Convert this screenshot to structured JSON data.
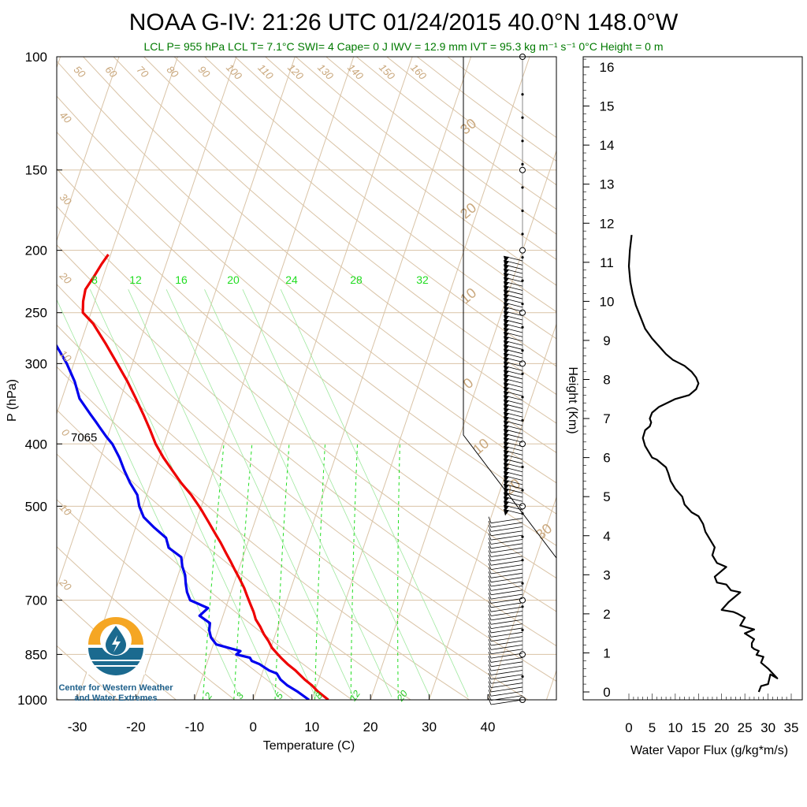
{
  "title": "NOAA G-IV: 21:26 UTC 01/24/2015  40.0°N 148.0°W",
  "subtitle": "LCL P= 955 hPa  LCL T= 7.1°C  SWI= 4  Cape= 0 J  IWV = 12.9 mm  IVT = 95.3 kg m⁻¹ s⁻¹  0°C Height = 0 m",
  "logo": {
    "line1": "Center for Western Weather",
    "line2": "and Water Extremes"
  },
  "annotation_7065": "7065",
  "colors": {
    "temperature": "#ee0000",
    "dewpoint": "#0000ee",
    "grid": "#d9c3a6",
    "mixing": "#22dd22",
    "profile": "#000000"
  },
  "chart_data": [
    {
      "type": "line",
      "chart_kind": "skew-t log-p",
      "xlabel": "Temperature (C)",
      "ylabel": "P (hPa)",
      "xlim": [
        -34,
        52
      ],
      "ylim": [
        1000,
        100
      ],
      "y_scale": "log",
      "x_ticks": [
        "-30",
        "-20",
        "-10",
        "0",
        "10",
        "20",
        "30",
        "40"
      ],
      "x_tick_values": [
        -30,
        -20,
        -10,
        0,
        10,
        20,
        30,
        40
      ],
      "y_ticks": [
        "100",
        "150",
        "200",
        "250",
        "300",
        "400",
        "500",
        "700",
        "850",
        "1000"
      ],
      "y_tick_values": [
        100,
        150,
        200,
        250,
        300,
        400,
        500,
        700,
        850,
        1000
      ],
      "mixing_ratio_labels": [
        "8",
        "12",
        "16",
        "20",
        "24",
        "28",
        "32"
      ],
      "moist_adiabat_labels": [
        "2",
        "3",
        "5",
        "8",
        "12",
        "20"
      ],
      "isotherm_labels": [
        "50",
        "60",
        "70",
        "80",
        "90",
        "100",
        "110",
        "120",
        "130",
        "140",
        "150",
        "160"
      ],
      "left_labels": [
        "40",
        "30",
        "20",
        "10",
        "0",
        "10",
        "20"
      ],
      "right_labels": [
        "30",
        "20",
        "10",
        "0",
        "10",
        "20",
        "30"
      ],
      "series": [
        {
          "role": "temperature",
          "p": [
            1000,
            970,
            950,
            930,
            900,
            880,
            860,
            850,
            830,
            810,
            790,
            770,
            750,
            730,
            710,
            690,
            670,
            650,
            630,
            610,
            590,
            570,
            550,
            530,
            510,
            500,
            480,
            460,
            440,
            420,
            400,
            380,
            360,
            340,
            320,
            300,
            280,
            260,
            250,
            240,
            230,
            220,
            210,
            203
          ],
          "t": [
            12.8,
            10.5,
            9.2,
            7.6,
            5.5,
            3.8,
            2.3,
            1.6,
            0.2,
            -0.8,
            -2.0,
            -3.0,
            -4.2,
            -5.0,
            -6.0,
            -7.0,
            -8.0,
            -9.2,
            -10.5,
            -11.8,
            -13.2,
            -14.6,
            -16.2,
            -17.8,
            -19.5,
            -20.4,
            -22.4,
            -24.8,
            -27.0,
            -29.3,
            -31.4,
            -33.2,
            -35.2,
            -37.4,
            -39.8,
            -42.6,
            -45.6,
            -49.0,
            -51.4,
            -52.0,
            -52.3,
            -51.6,
            -51.0,
            -50.4
          ]
        },
        {
          "role": "dewpoint",
          "p": [
            1000,
            970,
            950,
            930,
            910,
            900,
            880,
            870,
            860,
            850,
            840,
            820,
            800,
            780,
            760,
            740,
            720,
            700,
            680,
            660,
            640,
            620,
            600,
            580,
            560,
            540,
            520,
            500,
            480,
            460,
            440,
            420,
            400,
            390,
            380,
            370,
            360,
            340,
            320,
            300,
            280,
            260,
            250,
            240,
            230,
            220,
            210,
            203
          ],
          "t": [
            9.5,
            7.0,
            5.0,
            3.5,
            2.5,
            1.0,
            -1.0,
            -2.5,
            -3.0,
            -5.5,
            -5.0,
            -9.5,
            -10.8,
            -11.5,
            -11.8,
            -14.0,
            -13.0,
            -16.5,
            -17.5,
            -18.2,
            -18.8,
            -19.8,
            -20.5,
            -23.2,
            -24.2,
            -26.8,
            -29.2,
            -30.6,
            -31.6,
            -33.5,
            -35.2,
            -36.8,
            -38.8,
            -40.2,
            -41.5,
            -42.8,
            -44.2,
            -47.0,
            -48.8,
            -51.2,
            -54.2,
            -57.2,
            -60.0,
            -62.8,
            -63.5,
            -62.2,
            -62.0,
            -61.5
          ]
        }
      ]
    },
    {
      "type": "line",
      "chart_kind": "profile",
      "xlabel": "Water Vapor Flux (g/kg*m/s)",
      "ylabel": "Height (Km)",
      "xlim": [
        0,
        35
      ],
      "ylim": [
        0,
        16.4
      ],
      "x_ticks": [
        "0",
        "5",
        "10",
        "15",
        "20",
        "25",
        "30",
        "35"
      ],
      "x_tick_values": [
        0,
        5,
        10,
        15,
        20,
        25,
        30,
        35
      ],
      "y_ticks": [
        "0",
        "1",
        "2",
        "3",
        "4",
        "5",
        "6",
        "7",
        "8",
        "9",
        "10",
        "11",
        "12",
        "13",
        "14",
        "15",
        "16"
      ],
      "y_tick_values": [
        0,
        1,
        2,
        3,
        4,
        5,
        6,
        7,
        8,
        9,
        10,
        11,
        12,
        13,
        14,
        15,
        16
      ],
      "series": [
        {
          "role": "flux",
          "x": [
            28.0,
            28.5,
            30.0,
            30.5,
            32.0,
            30.0,
            28.5,
            29.0,
            27.5,
            28.0,
            27.0,
            26.5,
            26.5,
            27.0,
            25.0,
            27.0,
            24.0,
            25.0,
            23.5,
            22.5,
            20.0,
            21.5,
            24.0,
            22.0,
            21.0,
            19.0,
            18.5,
            19.5,
            21.0,
            19.0,
            18.0,
            18.5,
            17.5,
            16.5,
            16.0,
            15.0,
            13.5,
            12.0,
            11.5,
            10.0,
            9.0,
            8.5,
            8.0,
            7.0,
            6.0,
            5.0,
            4.5,
            3.5,
            3.0,
            3.5,
            4.5,
            4.8,
            4.5,
            5.0,
            6.5,
            10.0,
            13.0,
            14.5,
            15.0,
            14.5,
            13.5,
            12.0,
            9.5,
            8.0,
            6.5,
            5.0,
            3.5,
            2.5,
            1.5,
            0.8,
            0.3,
            0.0,
            0.2,
            0.6
          ],
          "height": [
            0.0,
            0.15,
            0.2,
            0.45,
            0.35,
            0.6,
            0.75,
            0.9,
            0.95,
            1.05,
            1.1,
            1.15,
            1.25,
            1.35,
            1.5,
            1.6,
            1.7,
            1.9,
            2.0,
            2.05,
            2.1,
            2.3,
            2.55,
            2.6,
            2.75,
            2.8,
            2.95,
            3.05,
            3.2,
            3.3,
            3.5,
            3.7,
            3.9,
            4.1,
            4.3,
            4.5,
            4.6,
            4.8,
            5.0,
            5.2,
            5.4,
            5.6,
            5.75,
            5.85,
            5.95,
            6.0,
            6.1,
            6.3,
            6.5,
            6.7,
            6.8,
            6.9,
            7.0,
            7.15,
            7.3,
            7.5,
            7.6,
            7.75,
            7.9,
            8.05,
            8.2,
            8.35,
            8.5,
            8.65,
            8.85,
            9.05,
            9.3,
            9.6,
            9.9,
            10.2,
            10.5,
            10.9,
            11.3,
            11.7
          ]
        }
      ]
    }
  ]
}
